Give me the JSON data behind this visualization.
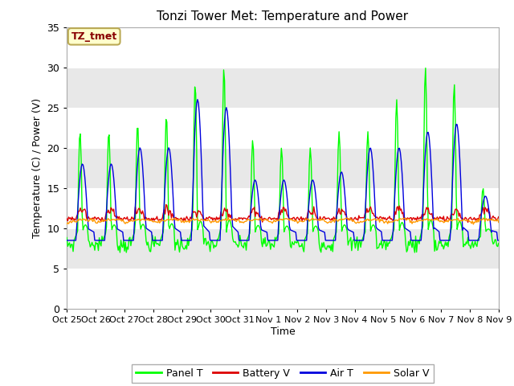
{
  "title": "Tonzi Tower Met: Temperature and Power",
  "xlabel": "Time",
  "ylabel": "Temperature (C) / Power (V)",
  "ylim": [
    0,
    35
  ],
  "yticks": [
    0,
    5,
    10,
    15,
    20,
    25,
    30,
    35
  ],
  "xtick_labels": [
    "Oct 25",
    "Oct 26",
    "Oct 27",
    "Oct 28",
    "Oct 29",
    "Oct 30",
    "Oct 31",
    "Nov 1",
    "Nov 2",
    "Nov 3",
    "Nov 4",
    "Nov 5",
    "Nov 6",
    "Nov 7",
    "Nov 8",
    "Nov 9"
  ],
  "annotation_text": "TZ_tmet",
  "annotation_bg": "#ffffcc",
  "annotation_border": "#bbaa55",
  "annotation_text_color": "#880000",
  "colors": {
    "panel_t": "#00ff00",
    "battery_v": "#dd0000",
    "air_t": "#0000dd",
    "solar_v": "#ff9900"
  },
  "legend_labels": [
    "Panel T",
    "Battery V",
    "Air T",
    "Solar V"
  ],
  "plot_bg_light": "#e8e8e8",
  "plot_bg_dark": "#d0d0d0",
  "grid_color": "#ffffff",
  "fig_bg": "#ffffff",
  "n_points": 480,
  "peak_days_panel": [
    22,
    22,
    23,
    24,
    28,
    30,
    21,
    20,
    20,
    22,
    22,
    26,
    30,
    28,
    15
  ],
  "peak_days_air": [
    18,
    18,
    20,
    20,
    26,
    25,
    16,
    16,
    16,
    17,
    20,
    20,
    22,
    23,
    14
  ]
}
